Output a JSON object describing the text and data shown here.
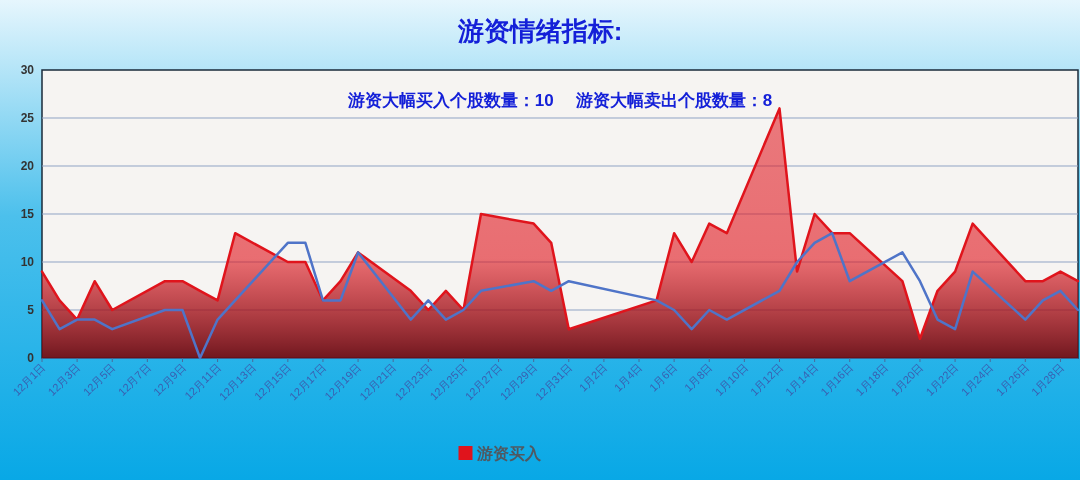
{
  "chart_data": {
    "type": "area",
    "title": "游资情绪指标:",
    "annotations": [
      "游资大幅买入个股数量：10",
      "游资大幅卖出个股数量：8"
    ],
    "categories": [
      "12月1日",
      null,
      "12月3日",
      null,
      "12月5日",
      null,
      "12月7日",
      null,
      "12月9日",
      null,
      "12月11日",
      null,
      "12月13日",
      null,
      "12月15日",
      null,
      "12月17日",
      null,
      "12月19日",
      null,
      "12月21日",
      null,
      "12月23日",
      null,
      "12月25日",
      null,
      "12月27日",
      null,
      "12月29日",
      null,
      "12月31日",
      null,
      "1月2日",
      null,
      "1月4日",
      null,
      "1月6日",
      null,
      "1月8日",
      null,
      "1月10日",
      null,
      "1月12日",
      null,
      "1月14日",
      null,
      "1月16日",
      null,
      "1月18日",
      null,
      "1月20日",
      null,
      "1月22日",
      null,
      "1月24日",
      null,
      "1月26日",
      null,
      "1月28日",
      null
    ],
    "series": [
      {
        "name": "游资买入",
        "color": "#e0141c",
        "values": [
          9,
          6,
          4,
          8,
          5,
          null,
          null,
          8,
          8,
          7,
          6,
          13,
          null,
          null,
          10,
          10,
          6,
          8,
          11,
          null,
          null,
          7,
          5,
          7,
          5,
          15,
          null,
          null,
          14,
          12,
          3,
          null,
          null,
          null,
          null,
          6,
          13,
          10,
          14,
          13,
          null,
          null,
          26,
          9,
          15,
          13,
          13,
          null,
          null,
          8,
          2,
          7,
          9,
          14,
          null,
          null,
          8,
          8,
          9,
          8
        ]
      },
      {
        "type": "line",
        "color": "#4f74c8",
        "values": [
          6,
          3,
          4,
          4,
          3,
          null,
          null,
          5,
          5,
          0,
          4,
          6,
          null,
          null,
          12,
          12,
          6,
          6,
          11,
          null,
          null,
          4,
          6,
          4,
          5,
          7,
          null,
          null,
          8,
          7,
          8,
          null,
          null,
          null,
          null,
          6,
          5,
          3,
          5,
          4,
          null,
          null,
          7,
          10,
          12,
          13,
          8,
          null,
          null,
          11,
          8,
          4,
          3,
          9,
          null,
          null,
          4,
          6,
          7,
          5
        ]
      }
    ],
    "ylim": [
      0,
      30
    ],
    "yticks": [
      0,
      5,
      10,
      15,
      20,
      25,
      30
    ],
    "grid": "y",
    "legend": "bottom",
    "line_style": "solid"
  }
}
